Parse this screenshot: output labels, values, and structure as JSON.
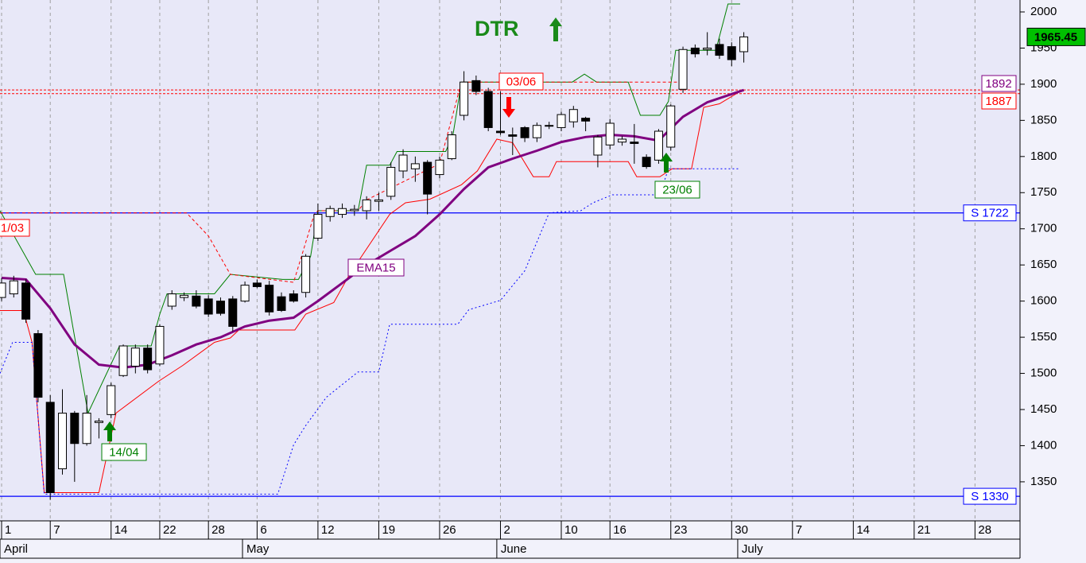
{
  "chart_data": {
    "type": "candlestick",
    "title": "DTR",
    "title_color": "#1a8a1a",
    "xlim": [
      -0.13,
      83.7
    ],
    "ylim": [
      1296,
      2016.5
    ],
    "yticks": [
      1350,
      1400,
      1450,
      1500,
      1550,
      1600,
      1650,
      1700,
      1750,
      1800,
      1850,
      1900,
      1950,
      2000
    ],
    "xticks": [
      {
        "value": 0,
        "label": "1"
      },
      {
        "value": 4,
        "label": "7"
      },
      {
        "value": 9,
        "label": "14"
      },
      {
        "value": 13,
        "label": "22"
      },
      {
        "value": 17,
        "label": "28"
      },
      {
        "value": 21,
        "label": "6"
      },
      {
        "value": 26,
        "label": "12"
      },
      {
        "value": 31,
        "label": "19"
      },
      {
        "value": 36,
        "label": "26"
      },
      {
        "value": 41,
        "label": "2"
      },
      {
        "value": 46,
        "label": "10"
      },
      {
        "value": 50,
        "label": "16"
      },
      {
        "value": 55,
        "label": "23"
      },
      {
        "value": 60,
        "label": "30"
      },
      {
        "value": 65,
        "label": "7"
      },
      {
        "value": 70,
        "label": "14"
      },
      {
        "value": 75,
        "label": "21"
      },
      {
        "value": 80,
        "label": "28"
      }
    ],
    "month_ticks": [
      {
        "value": -0.13,
        "label": "April"
      },
      {
        "value": 19.8,
        "label": "May"
      },
      {
        "value": 40.7,
        "label": "June"
      },
      {
        "value": 60.5,
        "label": "July"
      }
    ],
    "grid": true,
    "candles": {
      "up_color": "#ffffff",
      "down_color": "#000000",
      "x": [
        0,
        1,
        2,
        3,
        4,
        5,
        6,
        7,
        8,
        9,
        10,
        11,
        12,
        13,
        14,
        15,
        16,
        17,
        18,
        19,
        20,
        21,
        22,
        23,
        24,
        25,
        26,
        27,
        28,
        29,
        30,
        31,
        32,
        33,
        34,
        35,
        36,
        37,
        38,
        39,
        40,
        41,
        42,
        43,
        44,
        45,
        46,
        47,
        48,
        49,
        50,
        51,
        52,
        53,
        54,
        55,
        56,
        57,
        58,
        59,
        60,
        61
      ],
      "open": [
        1605,
        1610,
        1625,
        1555,
        1460,
        1368,
        1445,
        1403,
        1432,
        1443,
        1497,
        1510,
        1535,
        1513,
        1593,
        1605,
        1607,
        1603,
        1600,
        1603,
        1600,
        1625,
        1622,
        1606,
        1610,
        1612,
        1687,
        1717,
        1720,
        1725,
        1725,
        1738,
        1745,
        1780,
        1783,
        1792,
        1775,
        1797,
        1857,
        1905,
        1890,
        1835,
        1830,
        1840,
        1826,
        1842,
        1840,
        1848,
        1853,
        1802,
        1816,
        1820,
        1820,
        1799,
        1795,
        1813,
        1893,
        1950,
        1948,
        1955,
        1952,
        1945
      ],
      "high": [
        1632,
        1635,
        1630,
        1560,
        1470,
        1478,
        1448,
        1470,
        1438,
        1487,
        1540,
        1540,
        1540,
        1568,
        1615,
        1612,
        1615,
        1608,
        1605,
        1607,
        1627,
        1630,
        1628,
        1612,
        1615,
        1665,
        1735,
        1732,
        1735,
        1733,
        1745,
        1750,
        1792,
        1810,
        1800,
        1795,
        1800,
        1835,
        1918,
        1912,
        1895,
        1890,
        1840,
        1842,
        1847,
        1848,
        1862,
        1870,
        1855,
        1830,
        1852,
        1828,
        1845,
        1803,
        1838,
        1872,
        1952,
        1955,
        1972,
        1963,
        1958,
        1972
      ],
      "low": [
        1600,
        1605,
        1570,
        1460,
        1325,
        1360,
        1350,
        1400,
        1410,
        1438,
        1495,
        1500,
        1500,
        1510,
        1588,
        1600,
        1590,
        1578,
        1580,
        1558,
        1598,
        1618,
        1580,
        1585,
        1598,
        1605,
        1683,
        1710,
        1715,
        1718,
        1713,
        1725,
        1740,
        1770,
        1765,
        1720,
        1770,
        1795,
        1850,
        1885,
        1835,
        1830,
        1802,
        1820,
        1820,
        1838,
        1835,
        1840,
        1835,
        1785,
        1810,
        1815,
        1790,
        1783,
        1790,
        1808,
        1888,
        1937,
        1940,
        1935,
        1925,
        1930
      ],
      "close": [
        1625,
        1628,
        1575,
        1467,
        1335,
        1445,
        1403,
        1445,
        1434,
        1483,
        1538,
        1535,
        1505,
        1565,
        1610,
        1608,
        1593,
        1582,
        1583,
        1565,
        1622,
        1620,
        1585,
        1587,
        1600,
        1662,
        1720,
        1728,
        1728,
        1727,
        1740,
        1740,
        1785,
        1802,
        1790,
        1748,
        1795,
        1830,
        1903,
        1890,
        1840,
        1833,
        1828,
        1826,
        1843,
        1843,
        1858,
        1865,
        1849,
        1827,
        1846,
        1824,
        1818,
        1786,
        1835,
        1870,
        1948,
        1942,
        1950,
        1940,
        1934,
        1965.45
      ]
    },
    "last_price_color": "#00c000",
    "overlays": [
      {
        "color": "#008000",
        "width": 1,
        "dash": "solid",
        "x": [
          -0.13,
          2.8,
          5.1,
          7.1,
          9.7,
          12.3,
          13,
          13.6,
          17.5,
          18.8,
          23.1,
          24.4,
          25.4,
          26,
          29.3,
          30,
          31.9,
          32.5,
          36.5,
          37.1,
          37.8,
          46.9,
          47.9,
          48.9,
          51.5,
          52.5,
          54.1,
          54.8,
          55.4,
          58.7,
          59.7,
          60.7
        ],
        "values": [
          1725,
          1637,
          1637,
          1445,
          1538,
          1538,
          1582,
          1610,
          1610,
          1637,
          1630,
          1630,
          1662,
          1725,
          1725,
          1788,
          1788,
          1807,
          1807,
          1830,
          1903,
          1903,
          1914,
          1903,
          1903,
          1857,
          1857,
          1876,
          1947,
          1947,
          2011,
          2011
        ]
      },
      {
        "color": "#ff0000",
        "width": 1,
        "dash": "solid",
        "x": [
          -0.13,
          1.8,
          2.5,
          3.5,
          8,
          9.4,
          12.9,
          14.9,
          17.5,
          18.8,
          19.5,
          24.1,
          25,
          27.3,
          28.6,
          31.9,
          33.2,
          35.2,
          37.8,
          39.1,
          40.7,
          42,
          43.7,
          45,
          45.6,
          51.5,
          52.2,
          54.1,
          55.1,
          56.7,
          57.7,
          59,
          60.7
        ],
        "values": [
          1587,
          1587,
          1543,
          1335,
          1335,
          1445,
          1489,
          1511,
          1543,
          1549,
          1560,
          1560,
          1582,
          1598,
          1637,
          1720,
          1736,
          1741,
          1761,
          1780,
          1824,
          1819,
          1772,
          1772,
          1793,
          1793,
          1772,
          1772,
          1783,
          1783,
          1868,
          1873,
          1890
        ]
      },
      {
        "color": "#ff0000",
        "width": 1,
        "dash": "dashed",
        "x": [
          -0.13,
          15.2,
          17,
          18.8,
          24,
          25.7,
          26,
          29.3,
          30,
          36,
          37.8,
          55.5
        ],
        "values": [
          1722,
          1722,
          1690,
          1637,
          1626,
          1720,
          1725,
          1725,
          1740,
          1790,
          1903,
          1903
        ]
      },
      {
        "color": "#0000ff",
        "width": 1,
        "dash": "dotted",
        "x": [
          -0.13,
          0.9,
          2.5,
          3.5,
          22.7,
          24,
          25,
          26.7,
          29.3,
          31,
          31.9,
          37.5,
          38.4,
          41,
          43,
          45,
          47.6,
          48.6,
          50.2,
          54.1,
          54.8,
          60.7
        ],
        "values": [
          1500,
          1543,
          1543,
          1333,
          1333,
          1401,
          1428,
          1467,
          1502,
          1502,
          1568,
          1568,
          1588,
          1601,
          1642,
          1722,
          1725,
          1736,
          1747,
          1747,
          1783,
          1783
        ]
      },
      {
        "color": "#800080",
        "width": 3,
        "dash": "solid",
        "x": [
          0,
          2,
          4,
          6,
          8,
          10,
          12,
          14,
          16,
          18,
          20,
          22,
          24,
          26,
          28,
          30,
          32,
          34,
          36,
          38,
          40,
          42,
          44,
          46,
          48,
          50,
          52,
          54,
          56,
          58,
          61
        ],
        "values": [
          1632,
          1630,
          1590,
          1540,
          1512,
          1508,
          1512,
          1525,
          1540,
          1550,
          1565,
          1573,
          1577,
          1600,
          1625,
          1650,
          1670,
          1690,
          1720,
          1755,
          1785,
          1797,
          1808,
          1820,
          1827,
          1830,
          1828,
          1822,
          1855,
          1875,
          1892
        ]
      }
    ],
    "support_color": "#0000ff",
    "supports": [
      {
        "value": 1722,
        "label": "S 1722"
      },
      {
        "value": 1330,
        "label": "S 1330"
      }
    ],
    "stop_line_color": "#ff0000",
    "stops": [
      {
        "value": 1892,
        "color": "#800080"
      },
      {
        "value": 1887,
        "color": "#ff0000"
      }
    ],
    "annotations": [
      {
        "text": "03/06",
        "color": "#ff0000"
      },
      {
        "text": "14/04",
        "color": "#008000"
      },
      {
        "text": "23/06",
        "color": "#008000"
      },
      {
        "text": "1/03",
        "color": "#ff0000"
      },
      {
        "text": "EMA15",
        "color": "#800080"
      }
    ]
  }
}
